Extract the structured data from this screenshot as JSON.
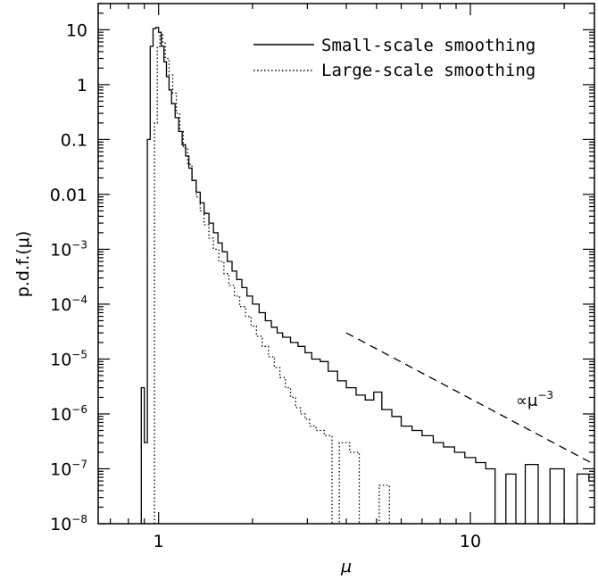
{
  "chart_data": {
    "type": "line",
    "xscale": "log",
    "yscale": "log",
    "xlim": [
      0.64,
      25
    ],
    "ylim": [
      1e-08,
      30
    ],
    "xlabel": "μ",
    "ylabel": "p.d.f.(μ)",
    "x_ticks": [
      {
        "value": 1,
        "label": "1"
      },
      {
        "value": 10,
        "label": "10"
      }
    ],
    "y_ticks": [
      {
        "value": 10,
        "base": "10",
        "exp": ""
      },
      {
        "value": 1,
        "base": "1",
        "exp": ""
      },
      {
        "value": 0.1,
        "base": "0.1",
        "exp": ""
      },
      {
        "value": 0.01,
        "base": "0.01",
        "exp": ""
      },
      {
        "value": 0.001,
        "base": "10",
        "exp": "−3"
      },
      {
        "value": 0.0001,
        "base": "10",
        "exp": "−4"
      },
      {
        "value": 1e-05,
        "base": "10",
        "exp": "−5"
      },
      {
        "value": 1e-06,
        "base": "10",
        "exp": "−6"
      },
      {
        "value": 1e-07,
        "base": "10",
        "exp": "−7"
      },
      {
        "value": 1e-08,
        "base": "10",
        "exp": "−8"
      }
    ],
    "legend_position": "top-right",
    "series": [
      {
        "name": "Small-scale smoothing",
        "style": "solid",
        "x": [
          0.88,
          0.9,
          0.92,
          0.94,
          0.96,
          0.98,
          1.0,
          1.02,
          1.04,
          1.06,
          1.08,
          1.1,
          1.13,
          1.16,
          1.19,
          1.22,
          1.25,
          1.28,
          1.32,
          1.36,
          1.4,
          1.45,
          1.5,
          1.55,
          1.6,
          1.66,
          1.72,
          1.78,
          1.85,
          1.92,
          2.0,
          2.1,
          2.2,
          2.3,
          2.4,
          2.5,
          2.65,
          2.8,
          2.95,
          3.1,
          3.3,
          3.5,
          3.75,
          4.0,
          4.3,
          4.6,
          4.9,
          5.2,
          5.6,
          6.0,
          6.5,
          7.0,
          7.6,
          8.2,
          8.9,
          9.6,
          10.4,
          11.2,
          12.0,
          13.0,
          14.0,
          15.0,
          16.5,
          18.0,
          20.0,
          22.0,
          24.0
        ],
        "y": [
          3e-06,
          3e-07,
          0.1,
          5,
          10.5,
          11,
          9,
          5,
          2.6,
          1.4,
          0.8,
          0.45,
          0.25,
          0.14,
          0.08,
          0.05,
          0.03,
          0.018,
          0.011,
          0.007,
          0.0045,
          0.003,
          0.002,
          0.0013,
          0.0009,
          0.0006,
          0.0004,
          0.00028,
          0.0002,
          0.00014,
          0.0001,
          7e-05,
          5e-05,
          3.8e-05,
          3e-05,
          2.5e-05,
          2e-05,
          1.7e-05,
          1.3e-05,
          1e-05,
          9e-06,
          6e-06,
          4e-06,
          3e-06,
          2.2e-06,
          1.8e-06,
          2.5e-06,
          1.2e-06,
          9e-07,
          6e-07,
          5e-07,
          4e-07,
          3e-07,
          2.5e-07,
          2e-07,
          1.6e-07,
          1.3e-07,
          1e-07,
          1e-08,
          8e-08,
          1e-08,
          1.2e-07,
          1e-08,
          1e-07,
          1e-08,
          8e-08,
          6e-08
        ]
      },
      {
        "name": "Large-scale smoothing",
        "style": "dotted",
        "x": [
          0.97,
          0.99,
          1.01,
          1.03,
          1.05,
          1.08,
          1.11,
          1.14,
          1.17,
          1.2,
          1.24,
          1.28,
          1.32,
          1.36,
          1.4,
          1.45,
          1.5,
          1.56,
          1.62,
          1.68,
          1.75,
          1.82,
          1.9,
          1.98,
          2.06,
          2.15,
          2.25,
          2.35,
          2.45,
          2.55,
          2.65,
          2.75,
          2.85,
          2.95,
          3.05,
          3.2,
          3.4,
          3.6,
          3.8,
          4.1,
          4.4,
          4.7,
          5.1,
          5.5,
          5.9
        ],
        "y": [
          0.2,
          5,
          8,
          6,
          3,
          1.5,
          0.7,
          0.3,
          0.14,
          0.07,
          0.035,
          0.018,
          0.009,
          0.005,
          0.0028,
          0.0016,
          0.001,
          0.0006,
          0.00036,
          0.00022,
          0.00014,
          9e-05,
          6e-05,
          4e-05,
          2.6e-05,
          1.7e-05,
          1.1e-05,
          7e-06,
          4.6e-06,
          3e-06,
          2e-06,
          1.3e-06,
          1e-06,
          8e-07,
          6e-07,
          5e-07,
          4e-07,
          1e-08,
          3e-07,
          2e-07,
          1e-08,
          1e-08,
          5e-08,
          1e-08,
          1e-08
        ]
      }
    ],
    "annotations": [
      {
        "type": "line",
        "style": "dashed",
        "x": [
          4.0,
          25.0
        ],
        "y": [
          3e-05,
          1.2e-07
        ]
      },
      {
        "type": "text",
        "text": "∝μ",
        "exp": "−3",
        "x": 14.0,
        "y": 1.4e-06
      }
    ]
  }
}
